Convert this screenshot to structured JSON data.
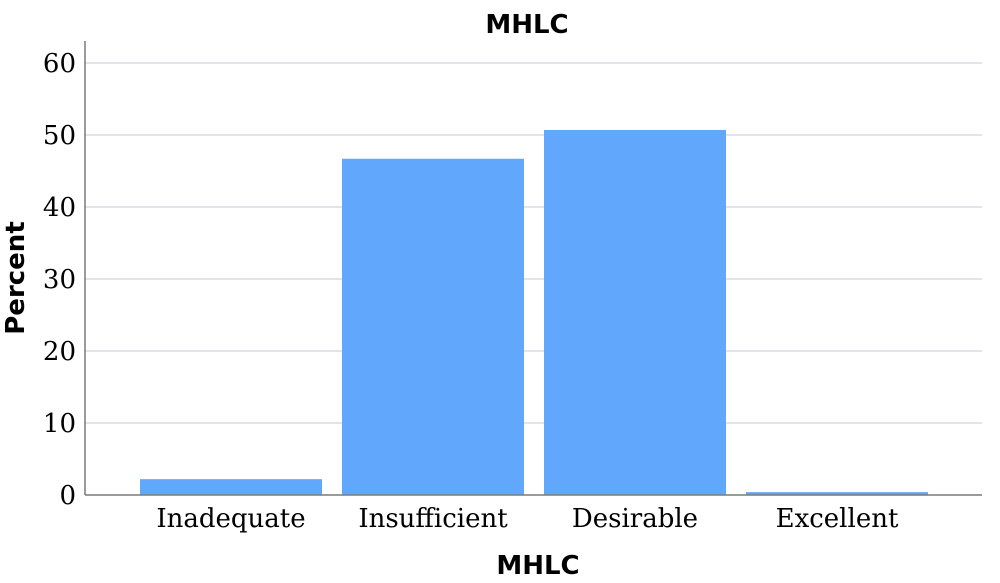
{
  "chart_data": {
    "type": "bar",
    "title": "MHLC",
    "xlabel": "MHLC",
    "ylabel": "Percent",
    "categories": [
      "Inadequate",
      "Insufficient",
      "Desirable",
      "Excellent"
    ],
    "values": [
      2.2,
      46.7,
      50.7,
      0.4
    ],
    "ylim": [
      0,
      63
    ],
    "yticks": [
      0,
      10,
      20,
      30,
      40,
      50,
      60
    ],
    "grid": true,
    "bar_color": "#61a8fd"
  }
}
